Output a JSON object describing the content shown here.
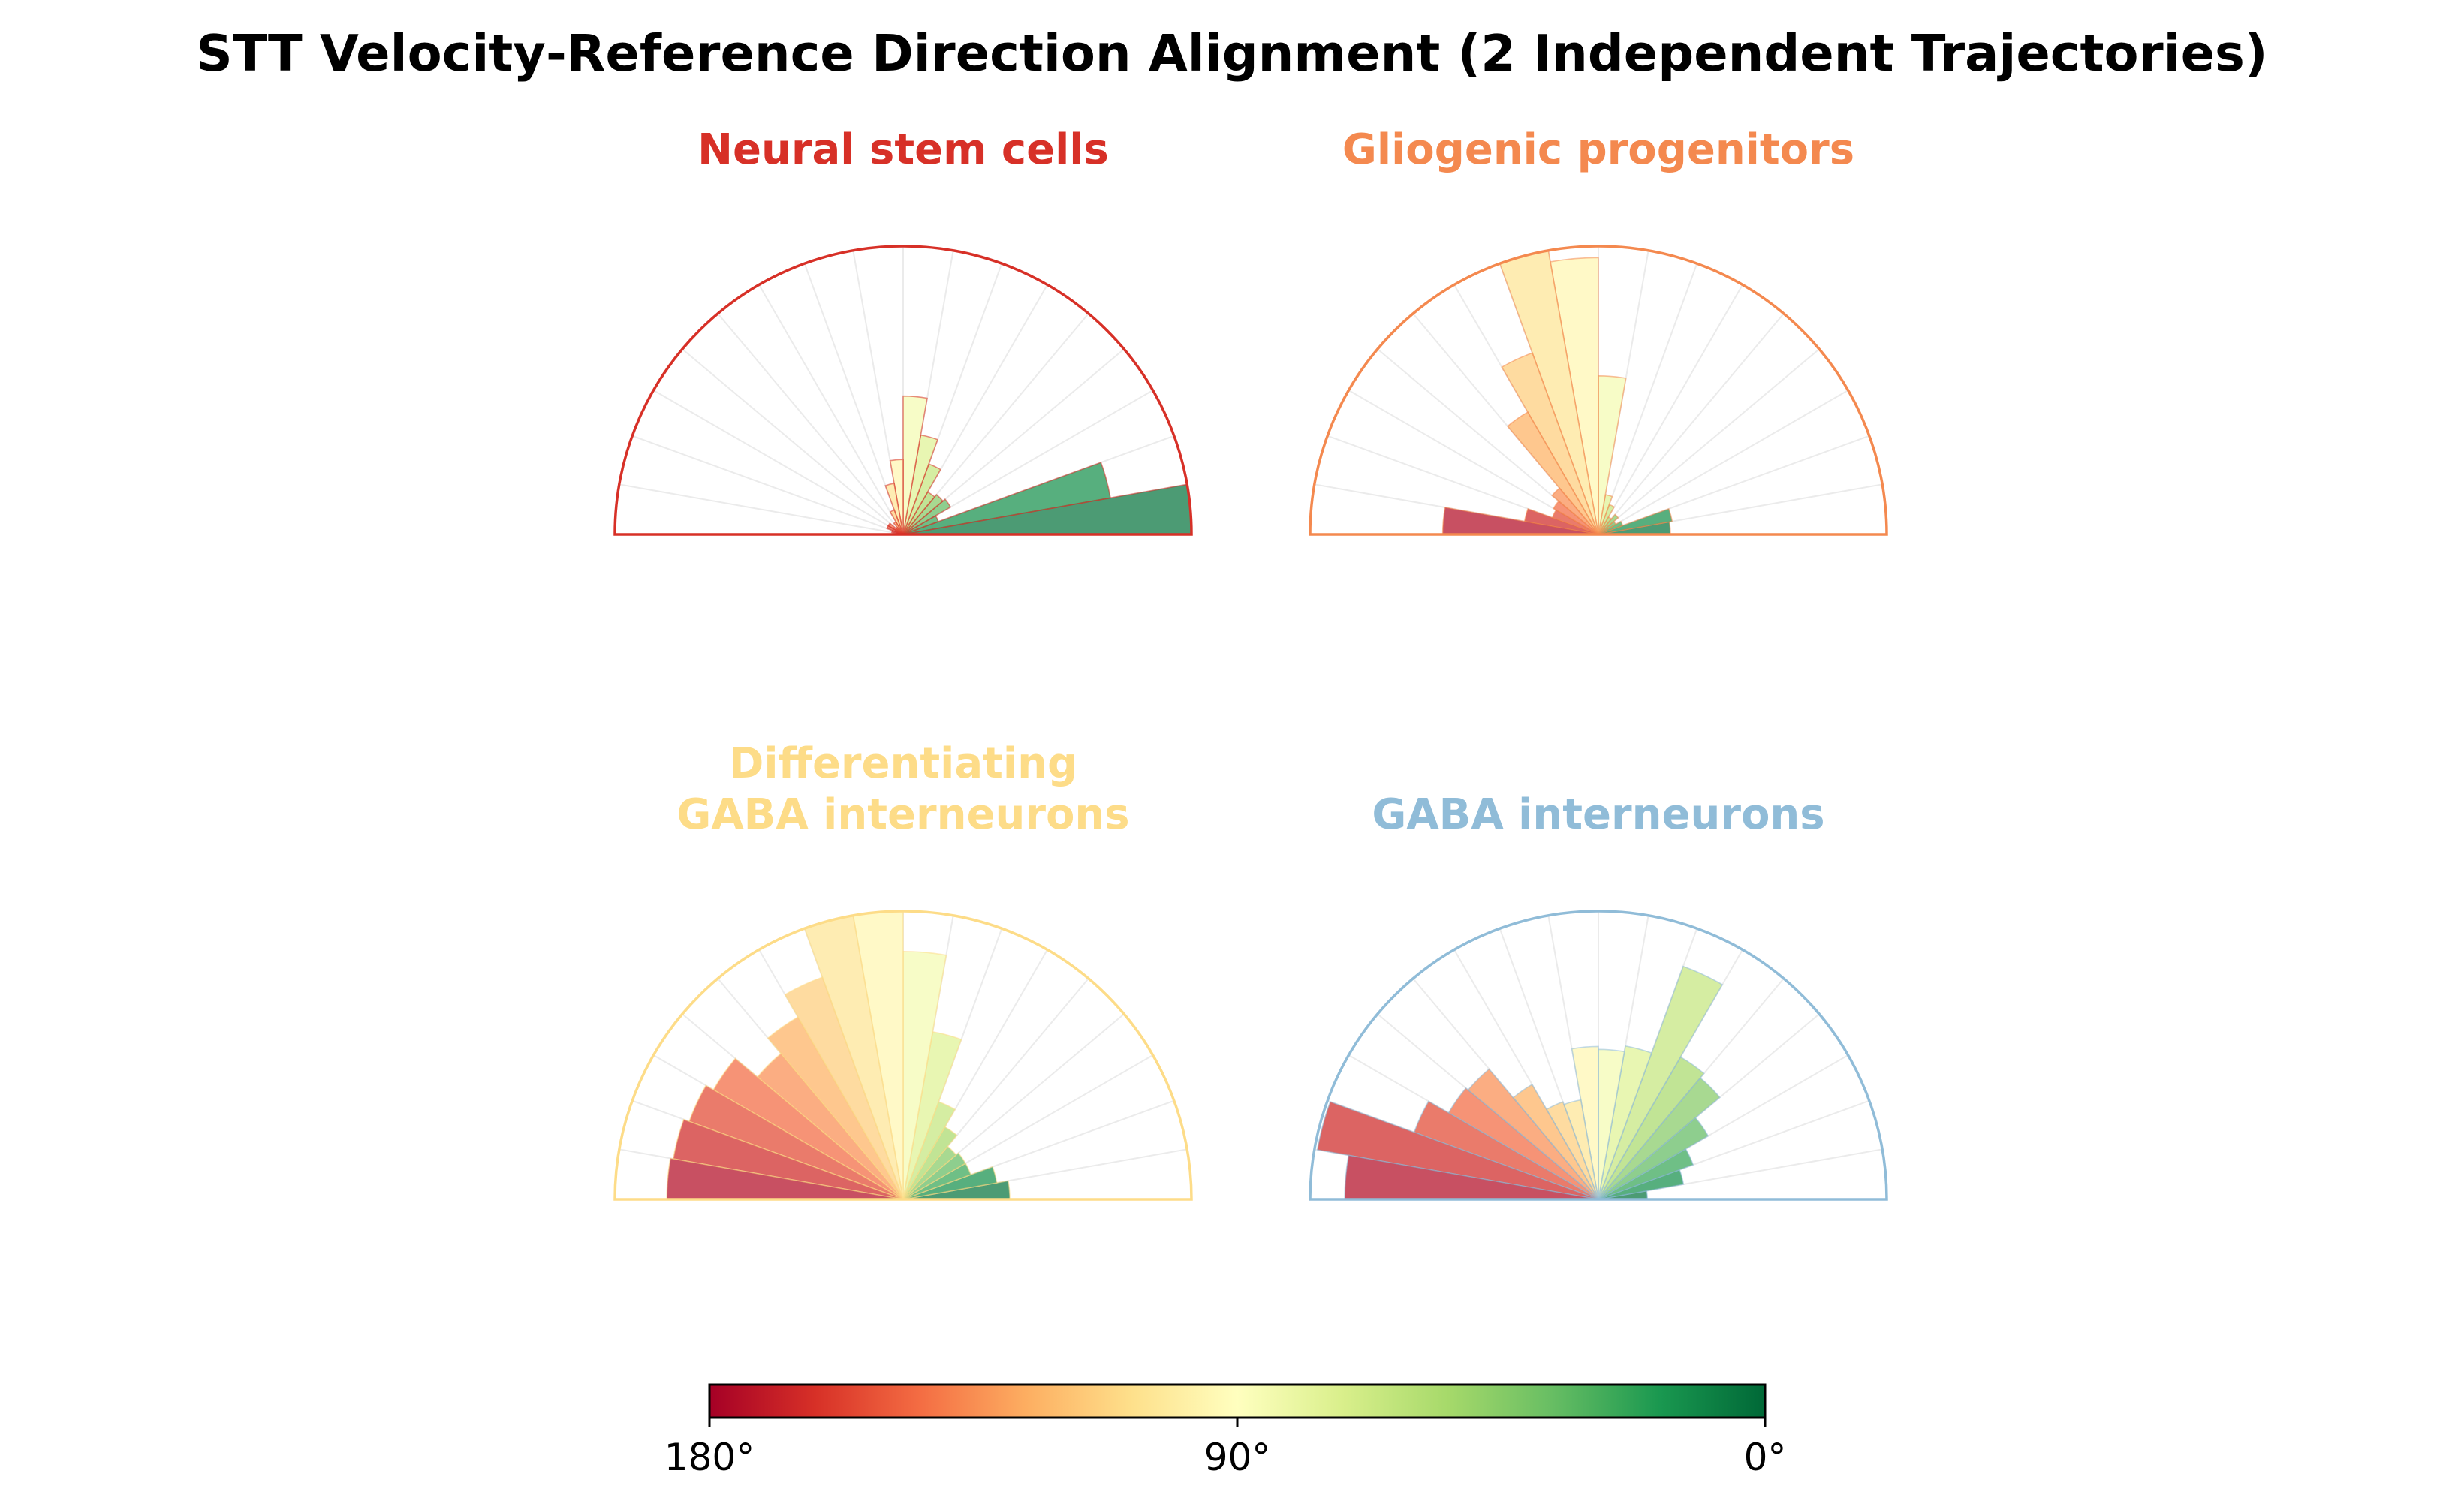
{
  "figure": {
    "title": "STT Velocity-Reference Direction Alignment (2 Independent Trajectories)"
  },
  "colorbar": {
    "colormap": "RdYlGn",
    "tick_labels": [
      "180°",
      "90°",
      "0°"
    ],
    "tick_values": [
      180,
      90,
      0
    ]
  },
  "chart_data": [
    {
      "type": "polar-bar",
      "title": "Neural stem cells",
      "title_color": "#d73027",
      "theta_range_deg": [
        0,
        180
      ],
      "bin_width_deg": 10,
      "bin_centers_deg": [
        5,
        15,
        25,
        35,
        45,
        55,
        65,
        75,
        85,
        95,
        105,
        115,
        125,
        135,
        145,
        155,
        165,
        175
      ],
      "values": [
        1.0,
        0.73,
        0.13,
        0.19,
        0.18,
        0.17,
        0.26,
        0.35,
        0.48,
        0.26,
        0.18,
        0.09,
        0.05,
        0.03,
        0.06,
        0.06,
        0.04,
        0.02
      ],
      "rlim": [
        0,
        1
      ]
    },
    {
      "type": "polar-bar",
      "title": "Gliogenic progenitors",
      "title_color": "#f4894f",
      "theta_range_deg": [
        0,
        180
      ],
      "bin_width_deg": 10,
      "bin_centers_deg": [
        5,
        15,
        25,
        35,
        45,
        55,
        65,
        75,
        85,
        95,
        105,
        115,
        125,
        135,
        145,
        155,
        165,
        175
      ],
      "values": [
        0.25,
        0.26,
        0.09,
        0.07,
        0.09,
        0.07,
        0.11,
        0.14,
        0.55,
        0.96,
        1.0,
        0.67,
        0.49,
        0.21,
        0.18,
        0.17,
        0.26,
        0.54
      ],
      "rlim": [
        0,
        1
      ]
    },
    {
      "type": "polar-bar",
      "title": "Differentiating\nGABA interneurons",
      "title_color": "#fddc88",
      "theta_range_deg": [
        0,
        180
      ],
      "bin_width_deg": 10,
      "bin_centers_deg": [
        5,
        15,
        25,
        35,
        45,
        55,
        65,
        75,
        85,
        95,
        105,
        115,
        125,
        135,
        145,
        155,
        165,
        175
      ],
      "values": [
        0.37,
        0.33,
        0.25,
        0.25,
        0.24,
        0.29,
        0.36,
        0.59,
        0.86,
        1.0,
        1.0,
        0.82,
        0.73,
        0.66,
        0.76,
        0.79,
        0.81,
        0.82
      ],
      "rlim": [
        0,
        1
      ]
    },
    {
      "type": "polar-bar",
      "title": "GABA interneurons",
      "title_color": "#90bcd8",
      "theta_range_deg": [
        0,
        180
      ],
      "bin_width_deg": 10,
      "bin_centers_deg": [
        5,
        15,
        25,
        35,
        45,
        55,
        65,
        75,
        85,
        95,
        105,
        115,
        125,
        135,
        145,
        155,
        165,
        175
      ],
      "values": [
        0.17,
        0.3,
        0.35,
        0.44,
        0.55,
        0.57,
        0.86,
        0.54,
        0.52,
        0.53,
        0.35,
        0.36,
        0.46,
        0.59,
        0.6,
        0.68,
        0.99,
        0.88
      ],
      "rlim": [
        0,
        1
      ]
    }
  ]
}
